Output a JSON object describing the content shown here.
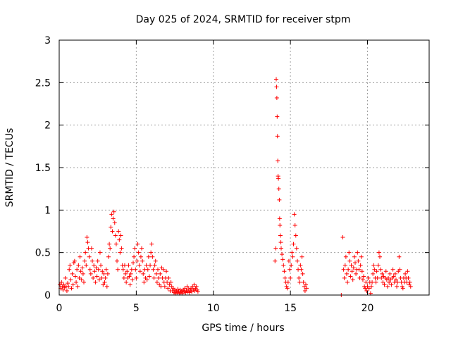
{
  "chart_data": {
    "type": "scatter",
    "title": "Day 025 of 2024, SRMTID for receiver stpm",
    "xlabel": "GPS time / hours",
    "ylabel": "SRMTID / TECUs",
    "xlim": [
      0,
      24
    ],
    "ylim": [
      0,
      3
    ],
    "grid": true,
    "marker": "+",
    "marker_color": "#ff0000",
    "x_ticks": [
      0,
      5,
      10,
      15,
      20
    ],
    "x_tick_labels": [
      "0",
      "5",
      "10",
      "15",
      "20"
    ],
    "y_ticks": [
      0,
      0.5,
      1,
      1.5,
      2,
      2.5,
      3
    ],
    "y_tick_labels": [
      "0",
      "0.5",
      "1",
      "1.5",
      "2",
      "2.5",
      "3"
    ],
    "series": [
      {
        "name": "SRMTID",
        "points": [
          [
            0.05,
            0.12
          ],
          [
            0.1,
            0.08
          ],
          [
            0.15,
            0.15
          ],
          [
            0.2,
            0.1
          ],
          [
            0.25,
            0.06
          ],
          [
            0.3,
            0.12
          ],
          [
            0.35,
            0.09
          ],
          [
            0.4,
            0.2
          ],
          [
            0.45,
            0.1
          ],
          [
            0.5,
            0.05
          ],
          [
            0.55,
            0.14
          ],
          [
            0.6,
            0.1
          ],
          [
            0.65,
            0.3
          ],
          [
            0.7,
            0.35
          ],
          [
            0.75,
            0.18
          ],
          [
            0.8,
            0.08
          ],
          [
            0.85,
            0.25
          ],
          [
            0.9,
            0.12
          ],
          [
            0.95,
            0.38
          ],
          [
            1.0,
            0.4
          ],
          [
            1.05,
            0.22
          ],
          [
            1.1,
            0.15
          ],
          [
            1.15,
            0.3
          ],
          [
            1.2,
            0.1
          ],
          [
            1.25,
            0.35
          ],
          [
            1.3,
            0.2
          ],
          [
            1.35,
            0.45
          ],
          [
            1.4,
            0.28
          ],
          [
            1.45,
            0.18
          ],
          [
            1.5,
            0.32
          ],
          [
            1.55,
            0.25
          ],
          [
            1.6,
            0.15
          ],
          [
            1.65,
            0.4
          ],
          [
            1.7,
            0.5
          ],
          [
            1.75,
            0.35
          ],
          [
            1.8,
            0.68
          ],
          [
            1.85,
            0.62
          ],
          [
            1.9,
            0.55
          ],
          [
            1.95,
            0.45
          ],
          [
            2.0,
            0.3
          ],
          [
            2.05,
            0.25
          ],
          [
            2.1,
            0.55
          ],
          [
            2.15,
            0.4
          ],
          [
            2.2,
            0.2
          ],
          [
            2.25,
            0.35
          ],
          [
            2.3,
            0.28
          ],
          [
            2.35,
            0.15
          ],
          [
            2.4,
            0.32
          ],
          [
            2.45,
            0.22
          ],
          [
            2.5,
            0.4
          ],
          [
            2.55,
            0.3
          ],
          [
            2.6,
            0.18
          ],
          [
            2.65,
            0.5
          ],
          [
            2.7,
            0.35
          ],
          [
            2.75,
            0.2
          ],
          [
            2.8,
            0.28
          ],
          [
            2.85,
            0.12
          ],
          [
            2.9,
            0.25
          ],
          [
            2.95,
            0.15
          ],
          [
            3.0,
            0.2
          ],
          [
            3.05,
            0.3
          ],
          [
            3.1,
            0.1
          ],
          [
            3.15,
            0.25
          ],
          [
            3.2,
            0.45
          ],
          [
            3.25,
            0.6
          ],
          [
            3.3,
            0.55
          ],
          [
            3.35,
            0.8
          ],
          [
            3.4,
            0.95
          ],
          [
            3.45,
            0.75
          ],
          [
            3.5,
            0.9
          ],
          [
            3.55,
            0.98
          ],
          [
            3.6,
            0.85
          ],
          [
            3.65,
            0.7
          ],
          [
            3.7,
            0.6
          ],
          [
            3.75,
            0.4
          ],
          [
            3.8,
            0.3
          ],
          [
            3.85,
            0.75
          ],
          [
            3.9,
            0.65
          ],
          [
            3.95,
            0.5
          ],
          [
            4.0,
            0.7
          ],
          [
            4.05,
            0.55
          ],
          [
            4.1,
            0.35
          ],
          [
            4.15,
            0.3
          ],
          [
            4.2,
            0.2
          ],
          [
            4.25,
            0.35
          ],
          [
            4.3,
            0.25
          ],
          [
            4.35,
            0.15
          ],
          [
            4.4,
            0.28
          ],
          [
            4.45,
            0.2
          ],
          [
            4.5,
            0.35
          ],
          [
            4.55,
            0.22
          ],
          [
            4.6,
            0.12
          ],
          [
            4.65,
            0.25
          ],
          [
            4.7,
            0.3
          ],
          [
            4.75,
            0.18
          ],
          [
            4.8,
            0.38
          ],
          [
            4.85,
            0.45
          ],
          [
            4.9,
            0.55
          ],
          [
            4.95,
            0.3
          ],
          [
            5.0,
            0.2
          ],
          [
            5.05,
            0.4
          ],
          [
            5.1,
            0.6
          ],
          [
            5.15,
            0.5
          ],
          [
            5.2,
            0.35
          ],
          [
            5.25,
            0.28
          ],
          [
            5.3,
            0.45
          ],
          [
            5.35,
            0.55
          ],
          [
            5.4,
            0.4
          ],
          [
            5.45,
            0.25
          ],
          [
            5.5,
            0.15
          ],
          [
            5.55,
            0.3
          ],
          [
            5.6,
            0.2
          ],
          [
            5.65,
            0.35
          ],
          [
            5.7,
            0.18
          ],
          [
            5.75,
            0.3
          ],
          [
            5.8,
            0.45
          ],
          [
            5.85,
            0.22
          ],
          [
            5.9,
            0.35
          ],
          [
            5.95,
            0.5
          ],
          [
            6.0,
            0.6
          ],
          [
            6.05,
            0.45
          ],
          [
            6.1,
            0.3
          ],
          [
            6.15,
            0.2
          ],
          [
            6.2,
            0.35
          ],
          [
            6.25,
            0.4
          ],
          [
            6.3,
            0.25
          ],
          [
            6.35,
            0.15
          ],
          [
            6.4,
            0.3
          ],
          [
            6.45,
            0.2
          ],
          [
            6.5,
            0.12
          ],
          [
            6.55,
            0.25
          ],
          [
            6.6,
            0.1
          ],
          [
            6.65,
            0.32
          ],
          [
            6.7,
            0.2
          ],
          [
            6.75,
            0.3
          ],
          [
            6.8,
            0.15
          ],
          [
            6.85,
            0.1
          ],
          [
            6.9,
            0.2
          ],
          [
            6.95,
            0.28
          ],
          [
            7.0,
            0.15
          ],
          [
            7.05,
            0.08
          ],
          [
            7.1,
            0.2
          ],
          [
            7.15,
            0.12
          ],
          [
            7.2,
            0.05
          ],
          [
            7.25,
            0.15
          ],
          [
            7.3,
            0.1
          ],
          [
            7.35,
            0.05
          ],
          [
            7.4,
            0.08
          ],
          [
            7.45,
            0.03
          ],
          [
            7.5,
            0.06
          ],
          [
            7.55,
            0.02
          ],
          [
            7.6,
            0.05
          ],
          [
            7.65,
            0.03
          ],
          [
            7.7,
            0.07
          ],
          [
            7.75,
            0.04
          ],
          [
            7.8,
            0.02
          ],
          [
            7.85,
            0.06
          ],
          [
            7.9,
            0.03
          ],
          [
            7.95,
            0.05
          ],
          [
            8.0,
            0.02
          ],
          [
            8.05,
            0.06
          ],
          [
            8.1,
            0.04
          ],
          [
            8.15,
            0.08
          ],
          [
            8.2,
            0.03
          ],
          [
            8.25,
            0.05
          ],
          [
            8.3,
            0.1
          ],
          [
            8.35,
            0.04
          ],
          [
            8.4,
            0.07
          ],
          [
            8.45,
            0.03
          ],
          [
            8.5,
            0.05
          ],
          [
            8.55,
            0.08
          ],
          [
            8.6,
            0.04
          ],
          [
            8.65,
            0.1
          ],
          [
            8.7,
            0.06
          ],
          [
            8.75,
            0.12
          ],
          [
            8.8,
            0.05
          ],
          [
            8.85,
            0.08
          ],
          [
            8.9,
            0.1
          ],
          [
            8.95,
            0.06
          ],
          [
            9.0,
            0.04
          ],
          [
            14.0,
            0.4
          ],
          [
            14.05,
            0.55
          ],
          [
            14.08,
            2.54
          ],
          [
            14.1,
            2.45
          ],
          [
            14.12,
            2.32
          ],
          [
            14.14,
            2.1
          ],
          [
            14.16,
            1.87
          ],
          [
            14.18,
            1.58
          ],
          [
            14.2,
            1.4
          ],
          [
            14.22,
            1.37
          ],
          [
            14.25,
            1.25
          ],
          [
            14.28,
            1.12
          ],
          [
            14.3,
            0.9
          ],
          [
            14.32,
            0.82
          ],
          [
            14.35,
            0.7
          ],
          [
            14.38,
            0.62
          ],
          [
            14.4,
            0.55
          ],
          [
            14.45,
            0.48
          ],
          [
            14.5,
            0.42
          ],
          [
            14.55,
            0.35
          ],
          [
            14.6,
            0.28
          ],
          [
            14.65,
            0.2
          ],
          [
            14.7,
            0.15
          ],
          [
            14.75,
            0.1
          ],
          [
            14.8,
            0.08
          ],
          [
            14.85,
            0.15
          ],
          [
            14.9,
            0.4
          ],
          [
            14.95,
            0.3
          ],
          [
            15.0,
            0.2
          ],
          [
            15.05,
            0.35
          ],
          [
            15.1,
            0.5
          ],
          [
            15.15,
            0.45
          ],
          [
            15.2,
            0.6
          ],
          [
            15.25,
            0.95
          ],
          [
            15.3,
            0.82
          ],
          [
            15.35,
            0.7
          ],
          [
            15.4,
            0.55
          ],
          [
            15.45,
            0.4
          ],
          [
            15.5,
            0.3
          ],
          [
            15.55,
            0.2
          ],
          [
            15.6,
            0.15
          ],
          [
            15.65,
            0.35
          ],
          [
            15.7,
            0.3
          ],
          [
            15.75,
            0.45
          ],
          [
            15.8,
            0.25
          ],
          [
            15.85,
            0.15
          ],
          [
            15.9,
            0.1
          ],
          [
            15.95,
            0.05
          ],
          [
            16.0,
            0.12
          ],
          [
            16.05,
            0.08
          ],
          [
            18.3,
            0.0
          ],
          [
            18.4,
            0.68
          ],
          [
            18.45,
            0.3
          ],
          [
            18.5,
            0.2
          ],
          [
            18.55,
            0.35
          ],
          [
            18.6,
            0.45
          ],
          [
            18.65,
            0.25
          ],
          [
            18.7,
            0.15
          ],
          [
            18.75,
            0.3
          ],
          [
            18.8,
            0.5
          ],
          [
            18.85,
            0.4
          ],
          [
            18.9,
            0.22
          ],
          [
            18.95,
            0.35
          ],
          [
            19.0,
            0.28
          ],
          [
            19.05,
            0.18
          ],
          [
            19.1,
            0.32
          ],
          [
            19.15,
            0.45
          ],
          [
            19.2,
            0.38
          ],
          [
            19.25,
            0.25
          ],
          [
            19.3,
            0.3
          ],
          [
            19.35,
            0.5
          ],
          [
            19.4,
            0.4
          ],
          [
            19.45,
            0.3
          ],
          [
            19.5,
            0.2
          ],
          [
            19.55,
            0.35
          ],
          [
            19.6,
            0.45
          ],
          [
            19.65,
            0.28
          ],
          [
            19.7,
            0.18
          ],
          [
            19.75,
            0.22
          ],
          [
            19.8,
            0.1
          ],
          [
            19.85,
            0.08
          ],
          [
            19.9,
            0.15
          ],
          [
            19.95,
            0.05
          ],
          [
            20.0,
            0.1
          ],
          [
            20.05,
            0.2
          ],
          [
            20.1,
            0.08
          ],
          [
            20.15,
            0.15
          ],
          [
            20.2,
            0.02
          ],
          [
            20.25,
            0.1
          ],
          [
            20.3,
            0.15
          ],
          [
            20.35,
            0.25
          ],
          [
            20.4,
            0.35
          ],
          [
            20.45,
            0.3
          ],
          [
            20.5,
            0.2
          ],
          [
            20.55,
            0.15
          ],
          [
            20.6,
            0.28
          ],
          [
            20.65,
            0.2
          ],
          [
            20.7,
            0.35
          ],
          [
            20.75,
            0.5
          ],
          [
            20.8,
            0.45
          ],
          [
            20.85,
            0.3
          ],
          [
            20.9,
            0.2
          ],
          [
            20.95,
            0.25
          ],
          [
            21.0,
            0.15
          ],
          [
            21.05,
            0.22
          ],
          [
            21.1,
            0.12
          ],
          [
            21.15,
            0.2
          ],
          [
            21.2,
            0.28
          ],
          [
            21.25,
            0.18
          ],
          [
            21.3,
            0.1
          ],
          [
            21.35,
            0.2
          ],
          [
            21.4,
            0.15
          ],
          [
            21.45,
            0.25
          ],
          [
            21.5,
            0.18
          ],
          [
            21.55,
            0.12
          ],
          [
            21.6,
            0.2
          ],
          [
            21.65,
            0.3
          ],
          [
            21.7,
            0.22
          ],
          [
            21.75,
            0.15
          ],
          [
            21.8,
            0.25
          ],
          [
            21.85,
            0.18
          ],
          [
            21.9,
            0.1
          ],
          [
            21.95,
            0.15
          ],
          [
            22.0,
            0.28
          ],
          [
            22.05,
            0.45
          ],
          [
            22.1,
            0.3
          ],
          [
            22.15,
            0.2
          ],
          [
            22.2,
            0.15
          ],
          [
            22.25,
            0.1
          ],
          [
            22.3,
            0.08
          ],
          [
            22.35,
            0.2
          ],
          [
            22.4,
            0.15
          ],
          [
            22.45,
            0.25
          ],
          [
            22.5,
            0.2
          ],
          [
            22.55,
            0.15
          ],
          [
            22.6,
            0.28
          ],
          [
            22.65,
            0.2
          ],
          [
            22.7,
            0.12
          ],
          [
            22.75,
            0.15
          ],
          [
            22.8,
            0.1
          ]
        ]
      }
    ]
  }
}
